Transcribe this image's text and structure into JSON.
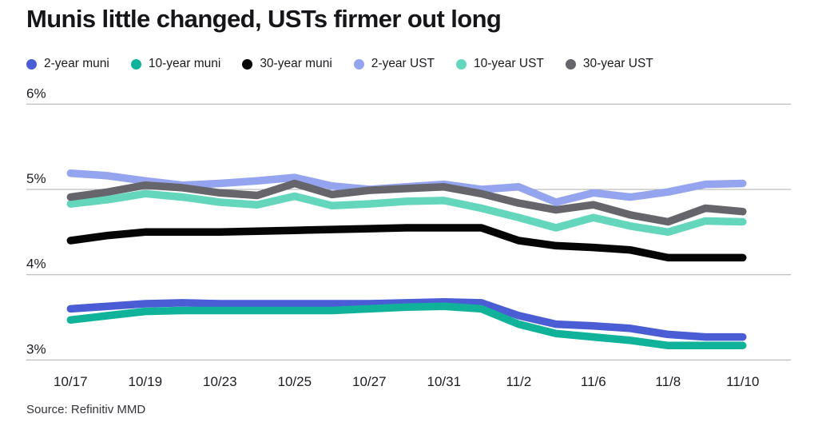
{
  "title": "Munis little changed, USTs firmer out long",
  "source": "Source: Refinitiv MMD",
  "chart_data": {
    "type": "line",
    "title": "Munis little changed, USTs firmer out long",
    "legend_position": "top",
    "grid": "horizontal-only",
    "gridline_color": "#aeaeae",
    "text_color": "#1c1c22",
    "ylim": [
      2.85,
      6.1
    ],
    "y_ticks": [
      {
        "value": 6,
        "label": "6%"
      },
      {
        "value": 5,
        "label": "5%"
      },
      {
        "value": 4,
        "label": "4%"
      },
      {
        "value": 3,
        "label": "3%"
      }
    ],
    "points_count": 19,
    "x_tick_labels": [
      {
        "point_index": 0,
        "label": "10/17"
      },
      {
        "point_index": 2,
        "label": "10/19"
      },
      {
        "point_index": 4,
        "label": "10/23"
      },
      {
        "point_index": 6,
        "label": "10/25"
      },
      {
        "point_index": 8,
        "label": "10/27"
      },
      {
        "point_index": 10,
        "label": "10/31"
      },
      {
        "point_index": 12,
        "label": "11/2"
      },
      {
        "point_index": 14,
        "label": "11/6"
      },
      {
        "point_index": 16,
        "label": "11/8"
      },
      {
        "point_index": 18,
        "label": "11/10"
      }
    ],
    "unit": "percent yield",
    "series": [
      {
        "name": "2-year muni",
        "color": "#4a5dd4",
        "values": [
          3.6,
          3.63,
          3.66,
          3.67,
          3.66,
          3.66,
          3.66,
          3.66,
          3.66,
          3.67,
          3.68,
          3.67,
          3.52,
          3.42,
          3.4,
          3.37,
          3.3,
          3.27,
          3.27
        ]
      },
      {
        "name": "10-year muni",
        "color": "#10b39a",
        "values": [
          3.47,
          3.52,
          3.57,
          3.58,
          3.58,
          3.58,
          3.58,
          3.58,
          3.6,
          3.62,
          3.63,
          3.6,
          3.42,
          3.31,
          3.27,
          3.23,
          3.17,
          3.17,
          3.17
        ]
      },
      {
        "name": "30-year muni",
        "color": "#050505",
        "values": [
          4.4,
          4.46,
          4.5,
          4.5,
          4.5,
          4.51,
          4.52,
          4.53,
          4.54,
          4.55,
          4.55,
          4.55,
          4.4,
          4.34,
          4.32,
          4.29,
          4.2,
          4.2,
          4.2
        ]
      },
      {
        "name": "2-year UST",
        "color": "#94a4ee",
        "values": [
          5.19,
          5.16,
          5.1,
          5.05,
          5.07,
          5.1,
          5.14,
          5.04,
          5.0,
          5.03,
          5.06,
          5.0,
          5.03,
          4.85,
          4.96,
          4.91,
          4.97,
          5.06,
          5.07
        ]
      },
      {
        "name": "10-year UST",
        "color": "#63d6bc",
        "values": [
          4.83,
          4.88,
          4.95,
          4.91,
          4.85,
          4.82,
          4.92,
          4.81,
          4.83,
          4.86,
          4.87,
          4.78,
          4.67,
          4.55,
          4.67,
          4.57,
          4.5,
          4.63,
          4.62
        ]
      },
      {
        "name": "30-year UST",
        "color": "#65656b",
        "values": [
          4.91,
          4.97,
          5.05,
          5.02,
          4.96,
          4.93,
          5.07,
          4.94,
          4.99,
          5.01,
          5.03,
          4.95,
          4.84,
          4.76,
          4.82,
          4.7,
          4.62,
          4.78,
          4.74
        ]
      }
    ]
  }
}
